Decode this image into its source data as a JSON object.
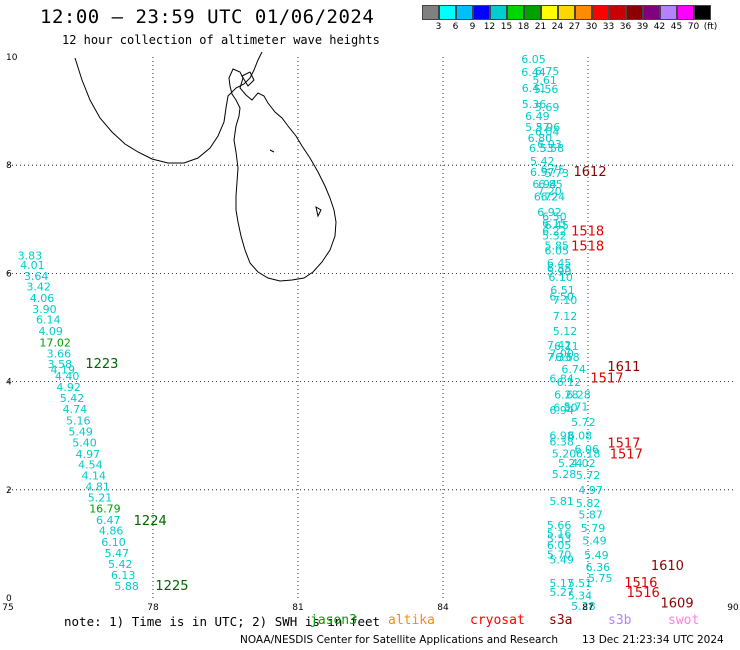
{
  "header": {
    "title": "12:00 – 23:59 UTC 01/06/2024",
    "subtitle": "12 hour collection of altimeter wave heights"
  },
  "colorbar": {
    "colors": [
      "#808080",
      "#00ffff",
      "#00bfff",
      "#0000ff",
      "#00cdcd",
      "#00d700",
      "#00a000",
      "#ffff00",
      "#ffd700",
      "#ff8c00",
      "#ff0000",
      "#c80000",
      "#8b0000",
      "#800080",
      "#b482ff",
      "#ff00ff",
      "#000000"
    ],
    "labels": [
      "3",
      "6",
      "9",
      "12",
      "15",
      "18",
      "21",
      "24",
      "27",
      "30",
      "33",
      "36",
      "39",
      "42",
      "45",
      "70",
      "(ft)"
    ]
  },
  "map": {
    "lon_range": [
      75,
      90
    ],
    "lat_range": [
      0,
      10
    ],
    "lon_ticks": [
      75,
      78,
      81,
      84,
      87,
      90
    ],
    "lat_ticks": [
      0,
      2,
      4,
      6,
      8,
      10
    ],
    "lon_tick_labels": [
      "75",
      "78",
      "81",
      "84",
      "87",
      "90"
    ],
    "lat_tick_labels": [
      "0",
      "2",
      "4",
      "6",
      "8",
      "10"
    ],
    "grid": true
  },
  "observations": [
    {
      "lon": 75.2,
      "lat": 6.26,
      "v": "3.83"
    },
    {
      "lon": 75.25,
      "lat": 6.08,
      "v": "4.01"
    },
    {
      "lon": 75.33,
      "lat": 5.88,
      "v": "3.64"
    },
    {
      "lon": 75.38,
      "lat": 5.68,
      "v": "3.42"
    },
    {
      "lon": 75.45,
      "lat": 5.47,
      "v": "4.06"
    },
    {
      "lon": 75.5,
      "lat": 5.27,
      "v": "3.90"
    },
    {
      "lon": 75.58,
      "lat": 5.07,
      "v": "6.14"
    },
    {
      "lon": 75.63,
      "lat": 4.86,
      "v": "4.09"
    },
    {
      "lon": 75.65,
      "lat": 4.65,
      "v": "17.02",
      "c": "#00a000"
    },
    {
      "lon": 75.8,
      "lat": 4.45,
      "v": "3.66"
    },
    {
      "lon": 75.82,
      "lat": 4.25,
      "v": "3.58"
    },
    {
      "lon": 75.88,
      "lat": 4.15,
      "v": "4.19"
    },
    {
      "lon": 75.97,
      "lat": 4.03,
      "v": "4.40"
    },
    {
      "lon": 76.0,
      "lat": 3.83,
      "v": "4.92"
    },
    {
      "lon": 76.07,
      "lat": 3.62,
      "v": "5.42"
    },
    {
      "lon": 76.13,
      "lat": 3.42,
      "v": "4.74"
    },
    {
      "lon": 76.2,
      "lat": 3.21,
      "v": "5.16"
    },
    {
      "lon": 76.25,
      "lat": 3.0,
      "v": "5.49"
    },
    {
      "lon": 76.33,
      "lat": 2.8,
      "v": "5.40"
    },
    {
      "lon": 76.4,
      "lat": 2.59,
      "v": "4.97"
    },
    {
      "lon": 76.45,
      "lat": 2.39,
      "v": "4.54"
    },
    {
      "lon": 76.52,
      "lat": 2.19,
      "v": "4.14"
    },
    {
      "lon": 76.6,
      "lat": 1.99,
      "v": "4.81"
    },
    {
      "lon": 76.65,
      "lat": 1.78,
      "v": "5.21"
    },
    {
      "lon": 76.68,
      "lat": 1.58,
      "v": "16.79",
      "c": "#00a000"
    },
    {
      "lon": 76.82,
      "lat": 1.37,
      "v": "6.47"
    },
    {
      "lon": 76.88,
      "lat": 1.17,
      "v": "4.86"
    },
    {
      "lon": 76.93,
      "lat": 0.96,
      "v": "6.10"
    },
    {
      "lon": 77.0,
      "lat": 0.76,
      "v": "5.47"
    },
    {
      "lon": 77.07,
      "lat": 0.55,
      "v": "5.42"
    },
    {
      "lon": 77.13,
      "lat": 0.35,
      "v": "6.13"
    },
    {
      "lon": 77.2,
      "lat": 0.15,
      "v": "5.88"
    },
    {
      "lon": 85.62,
      "lat": 9.89,
      "v": "6.05"
    },
    {
      "lon": 85.62,
      "lat": 9.65,
      "v": "6.44"
    },
    {
      "lon": 85.9,
      "lat": 9.67,
      "v": "6.75"
    },
    {
      "lon": 85.85,
      "lat": 9.5,
      "v": "5.61"
    },
    {
      "lon": 85.63,
      "lat": 9.35,
      "v": "6.41"
    },
    {
      "lon": 85.88,
      "lat": 9.33,
      "v": "5.56"
    },
    {
      "lon": 85.63,
      "lat": 9.06,
      "v": "5.36"
    },
    {
      "lon": 85.9,
      "lat": 9.0,
      "v": "5.69"
    },
    {
      "lon": 85.7,
      "lat": 8.84,
      "v": "6.49"
    },
    {
      "lon": 85.7,
      "lat": 8.63,
      "v": "5.37"
    },
    {
      "lon": 85.92,
      "lat": 8.63,
      "v": "5.96"
    },
    {
      "lon": 85.9,
      "lat": 8.55,
      "v": "6.04"
    },
    {
      "lon": 85.75,
      "lat": 8.43,
      "v": "6.80"
    },
    {
      "lon": 85.95,
      "lat": 8.32,
      "v": "6.03"
    },
    {
      "lon": 85.78,
      "lat": 8.24,
      "v": "6.53"
    },
    {
      "lon": 86.0,
      "lat": 8.24,
      "v": "5.58"
    },
    {
      "lon": 85.8,
      "lat": 8.0,
      "v": "5.42"
    },
    {
      "lon": 85.8,
      "lat": 7.8,
      "v": "6.57"
    },
    {
      "lon": 86.02,
      "lat": 7.85,
      "v": "6.75"
    },
    {
      "lon": 86.1,
      "lat": 7.78,
      "v": "5.73"
    },
    {
      "lon": 85.85,
      "lat": 7.58,
      "v": "6.94"
    },
    {
      "lon": 85.97,
      "lat": 7.58,
      "v": "6.85"
    },
    {
      "lon": 85.95,
      "lat": 7.45,
      "v": "7.20"
    },
    {
      "lon": 85.88,
      "lat": 7.35,
      "v": "6.72"
    },
    {
      "lon": 86.02,
      "lat": 7.35,
      "v": "6.24"
    },
    {
      "lon": 85.95,
      "lat": 7.06,
      "v": "6.92"
    },
    {
      "lon": 86.05,
      "lat": 6.98,
      "v": "6.50"
    },
    {
      "lon": 86.05,
      "lat": 6.86,
      "v": "6.15"
    },
    {
      "lon": 86.1,
      "lat": 6.82,
      "v": "6.45"
    },
    {
      "lon": 86.05,
      "lat": 6.71,
      "v": "6.22"
    },
    {
      "lon": 86.05,
      "lat": 6.63,
      "v": "5.32"
    },
    {
      "lon": 86.1,
      "lat": 6.44,
      "v": "5.85"
    },
    {
      "lon": 86.1,
      "lat": 6.35,
      "v": "6.05"
    },
    {
      "lon": 86.15,
      "lat": 6.12,
      "v": "6.45"
    },
    {
      "lon": 86.15,
      "lat": 6.03,
      "v": "6.55"
    },
    {
      "lon": 86.15,
      "lat": 5.96,
      "v": "5.90"
    },
    {
      "lon": 86.18,
      "lat": 5.86,
      "v": "6.10"
    },
    {
      "lon": 86.22,
      "lat": 5.62,
      "v": "6.51"
    },
    {
      "lon": 86.2,
      "lat": 5.5,
      "v": "6.50"
    },
    {
      "lon": 86.27,
      "lat": 5.43,
      "v": "7.10"
    },
    {
      "lon": 86.27,
      "lat": 5.14,
      "v": "7.12"
    },
    {
      "lon": 86.27,
      "lat": 4.86,
      "v": "5.12"
    },
    {
      "lon": 86.15,
      "lat": 4.6,
      "v": "7.42"
    },
    {
      "lon": 86.3,
      "lat": 4.58,
      "v": "6.11"
    },
    {
      "lon": 86.2,
      "lat": 4.45,
      "v": "7.00"
    },
    {
      "lon": 86.15,
      "lat": 4.38,
      "v": "7.33"
    },
    {
      "lon": 86.32,
      "lat": 4.38,
      "v": "6.68"
    },
    {
      "lon": 86.45,
      "lat": 4.16,
      "v": "6.74"
    },
    {
      "lon": 86.2,
      "lat": 3.98,
      "v": "6.84"
    },
    {
      "lon": 86.35,
      "lat": 3.92,
      "v": "6.12"
    },
    {
      "lon": 86.3,
      "lat": 3.69,
      "v": "6.28"
    },
    {
      "lon": 86.55,
      "lat": 3.69,
      "v": "6.28"
    },
    {
      "lon": 86.28,
      "lat": 3.45,
      "v": "6.30"
    },
    {
      "lon": 86.5,
      "lat": 3.47,
      "v": "5.71"
    },
    {
      "lon": 86.2,
      "lat": 3.4,
      "v": "6.94"
    },
    {
      "lon": 86.65,
      "lat": 3.18,
      "v": "5.72"
    },
    {
      "lon": 86.2,
      "lat": 2.93,
      "v": "6.98"
    },
    {
      "lon": 86.58,
      "lat": 2.93,
      "v": "6.08"
    },
    {
      "lon": 86.2,
      "lat": 2.82,
      "v": "6.38"
    },
    {
      "lon": 86.72,
      "lat": 2.68,
      "v": "6.06"
    },
    {
      "lon": 86.25,
      "lat": 2.6,
      "v": "5.20"
    },
    {
      "lon": 86.75,
      "lat": 2.6,
      "v": "6.18"
    },
    {
      "lon": 86.38,
      "lat": 2.42,
      "v": "5.24"
    },
    {
      "lon": 86.65,
      "lat": 2.42,
      "v": "4.02"
    },
    {
      "lon": 86.25,
      "lat": 2.22,
      "v": "5.28"
    },
    {
      "lon": 86.75,
      "lat": 2.2,
      "v": "5.72"
    },
    {
      "lon": 86.8,
      "lat": 1.92,
      "v": "4.97"
    },
    {
      "lon": 86.2,
      "lat": 1.72,
      "v": "5.81"
    },
    {
      "lon": 86.75,
      "lat": 1.68,
      "v": "5.82"
    },
    {
      "lon": 86.8,
      "lat": 1.47,
      "v": "5.87"
    },
    {
      "lon": 86.15,
      "lat": 1.28,
      "v": "5.66"
    },
    {
      "lon": 86.85,
      "lat": 1.22,
      "v": "5.79"
    },
    {
      "lon": 86.15,
      "lat": 1.12,
      "v": "5.16"
    },
    {
      "lon": 86.15,
      "lat": 1.03,
      "v": "5.53"
    },
    {
      "lon": 86.88,
      "lat": 0.99,
      "v": "5.49"
    },
    {
      "lon": 86.15,
      "lat": 0.91,
      "v": "6.05"
    },
    {
      "lon": 86.15,
      "lat": 0.73,
      "v": "5.70"
    },
    {
      "lon": 86.2,
      "lat": 0.64,
      "v": "5.49"
    },
    {
      "lon": 86.92,
      "lat": 0.72,
      "v": "5.49"
    },
    {
      "lon": 86.95,
      "lat": 0.5,
      "v": "6.36"
    },
    {
      "lon": 87.0,
      "lat": 0.3,
      "v": "5.75"
    },
    {
      "lon": 86.2,
      "lat": 0.2,
      "v": "5.17"
    },
    {
      "lon": 86.58,
      "lat": 0.2,
      "v": "5.51"
    },
    {
      "lon": 86.2,
      "lat": 0.04,
      "v": "5.27"
    },
    {
      "lon": 86.58,
      "lat": -0.03,
      "v": "5.34"
    },
    {
      "lon": 86.65,
      "lat": -0.22,
      "v": "5.28"
    }
  ],
  "time_labels": [
    {
      "lon": 76.6,
      "lat": 4.25,
      "v": "1223",
      "c": "#006400"
    },
    {
      "lon": 77.6,
      "lat": 1.35,
      "v": "1224",
      "c": "#006400"
    },
    {
      "lon": 78.05,
      "lat": 0.15,
      "v": "1225",
      "c": "#006400"
    },
    {
      "lon": 86.7,
      "lat": 7.8,
      "v": "1612",
      "c": "#8b0000"
    },
    {
      "lon": 86.65,
      "lat": 6.7,
      "v": "1518",
      "c": "#e00000"
    },
    {
      "lon": 86.65,
      "lat": 6.42,
      "v": "1518",
      "c": "#e00000"
    },
    {
      "lon": 87.4,
      "lat": 4.2,
      "v": "1611",
      "c": "#8b0000"
    },
    {
      "lon": 87.05,
      "lat": 3.98,
      "v": "1517",
      "c": "#e00000"
    },
    {
      "lon": 87.4,
      "lat": 2.78,
      "v": "1517",
      "c": "#e00000"
    },
    {
      "lon": 87.45,
      "lat": 2.58,
      "v": "1517",
      "c": "#e00000"
    },
    {
      "lon": 88.3,
      "lat": 0.52,
      "v": "1610",
      "c": "#8b0000"
    },
    {
      "lon": 87.75,
      "lat": 0.2,
      "v": "1516",
      "c": "#e00000"
    },
    {
      "lon": 87.8,
      "lat": 0.02,
      "v": "1516",
      "c": "#e00000"
    },
    {
      "lon": 88.5,
      "lat": -0.18,
      "v": "1609",
      "c": "#8b0000"
    }
  ],
  "legend": {
    "note": "note: 1) Time is in UTC; 2) SWH is in feet",
    "missions": [
      {
        "name": "jason3",
        "color": "#00a000"
      },
      {
        "name": "altika",
        "color": "#ff8c00"
      },
      {
        "name": "cryosat",
        "color": "#ff0000"
      },
      {
        "name": "s3a",
        "color": "#8b0000"
      },
      {
        "name": "s3b",
        "color": "#b482ff"
      },
      {
        "name": "swot",
        "color": "#ff82dc"
      }
    ]
  },
  "footer": {
    "credit": "NOAA/NESDIS Center for Satellite Applications and Research",
    "timestamp": "13 Dec 21:23:34 UTC 2024"
  }
}
